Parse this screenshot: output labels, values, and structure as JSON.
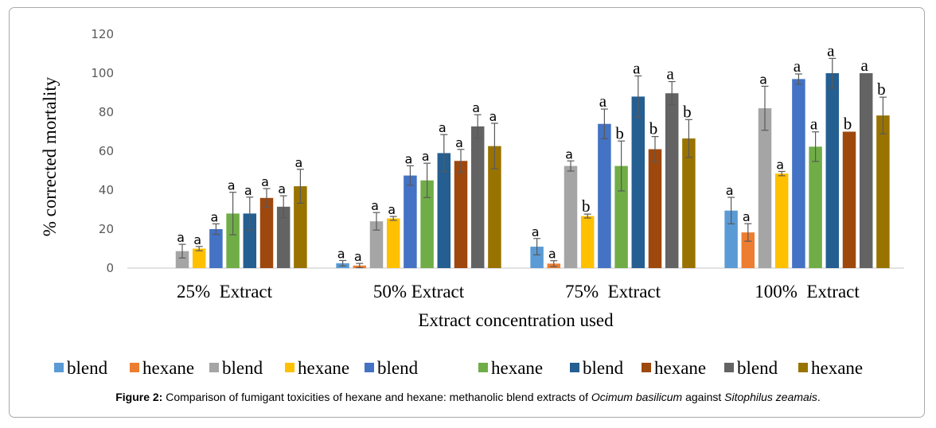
{
  "chart_data": {
    "type": "bar",
    "title": "",
    "xlabel": "Extract concentration used",
    "ylabel": "% corrected mortality",
    "ylim": [
      0,
      120
    ],
    "yticks": [
      0,
      20,
      40,
      60,
      80,
      100,
      120
    ],
    "grid": false,
    "legend_position": "bottom",
    "categories": [
      "25%  Extract",
      "50% Extract",
      "75%  Extract",
      "100%  Extract"
    ],
    "series": [
      {
        "name": "blend",
        "color": "#5B9BD5",
        "values": [
          0,
          2.5,
          11,
          29.5
        ],
        "errors": [
          0,
          1.4,
          4.2,
          6.8
        ],
        "labels": [
          "",
          "a",
          "a",
          "a"
        ]
      },
      {
        "name": "hexane",
        "color": "#ED7D31",
        "values": [
          0,
          1.3,
          2.3,
          18.3
        ],
        "errors": [
          0,
          1.1,
          1.5,
          4.5
        ],
        "labels": [
          "",
          "a",
          "a",
          "a"
        ]
      },
      {
        "name": "blend",
        "color": "#A5A5A5",
        "values": [
          8.7,
          24,
          52.4,
          82
        ],
        "errors": [
          3.5,
          4.5,
          2.6,
          11.3
        ],
        "labels": [
          "a",
          "a",
          "a",
          "a"
        ]
      },
      {
        "name": "hexane",
        "color": "#FFC000",
        "values": [
          10,
          25.5,
          26.7,
          48.5
        ],
        "errors": [
          1.1,
          1.0,
          1.0,
          1.1
        ],
        "labels": [
          "a",
          "a",
          "b",
          "a"
        ]
      },
      {
        "name": "blend",
        "color": "#4472C4",
        "values": [
          20,
          47.5,
          74,
          97
        ],
        "errors": [
          2.7,
          5.0,
          7.6,
          2.6
        ],
        "labels": [
          "a",
          "a",
          "a",
          "a"
        ]
      },
      {
        "name": "hexane",
        "color": "#70AD47",
        "values": [
          28,
          45,
          52.4,
          62.3
        ],
        "errors": [
          10.9,
          8.8,
          12.8,
          7.6
        ],
        "labels": [
          "a",
          "a",
          "b",
          "a"
        ]
      },
      {
        "name": "blend",
        "color": "#255E91",
        "values": [
          28,
          59,
          88,
          100
        ],
        "errors": [
          8.4,
          9.5,
          10.6,
          7.6
        ],
        "labels": [
          "a",
          "a",
          "a",
          "a"
        ]
      },
      {
        "name": "hexane",
        "color": "#9E480E",
        "values": [
          36,
          55,
          61,
          70
        ],
        "errors": [
          4.8,
          5.9,
          6.5,
          0
        ],
        "labels": [
          "a",
          "a",
          "b",
          "b"
        ]
      },
      {
        "name": "blend",
        "color": "#636363",
        "values": [
          31.5,
          72.7,
          89.7,
          100
        ],
        "errors": [
          5.6,
          6.0,
          6.0,
          0
        ],
        "labels": [
          "a",
          "a",
          "a",
          "a"
        ]
      },
      {
        "name": "hexane",
        "color": "#997300",
        "values": [
          42,
          62.6,
          66.5,
          78.3
        ],
        "errors": [
          8.7,
          11.7,
          9.7,
          9.4
        ],
        "labels": [
          "a",
          "a",
          "b",
          "b"
        ]
      }
    ]
  },
  "caption": {
    "label": "Figure 2:",
    "text_1": " Comparison of fumigant toxicities of hexane and hexane: methanolic blend extracts of ",
    "species_1": "Ocimum basilicum",
    "text_2": " against ",
    "species_2": "Sitophilus zeamais",
    "text_3": "."
  }
}
